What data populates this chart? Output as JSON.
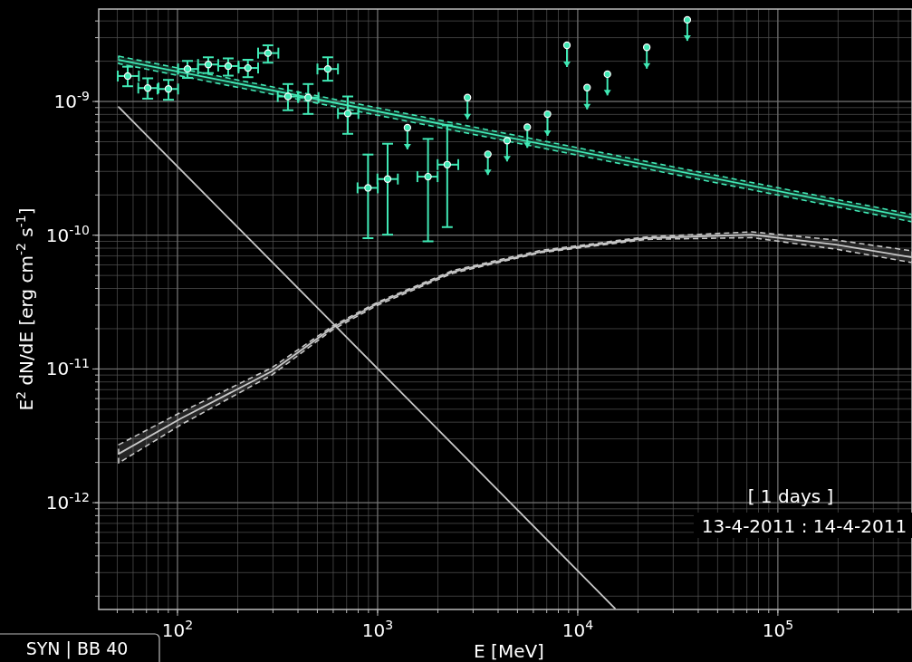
{
  "chart_data": {
    "type": "scatter",
    "xlabel": "E [MeV]",
    "ylabel": "E$^{2}$ dN/dE [erg cm$^{-2}$ s$^{-1}$]",
    "log": "xy",
    "grid": true,
    "xlim": [
      40.4,
      468000
    ],
    "ylim": [
      1.59e-13,
      4.91e-09
    ],
    "xticks": [
      {
        "value": 100,
        "label": "10$^{2}$"
      },
      {
        "value": 1000,
        "label": "10$^{3}$"
      },
      {
        "value": 10000,
        "label": "10$^{4}$"
      },
      {
        "value": 100000,
        "label": "10$^{5}$"
      }
    ],
    "yticks": [
      {
        "value": 1e-12,
        "label": "10$^{-12}$"
      },
      {
        "value": 1e-11,
        "label": "10$^{-11}$"
      },
      {
        "value": 1e-10,
        "label": "10$^{-10}$"
      },
      {
        "value": 1e-09,
        "label": "10$^{-9}$"
      }
    ],
    "annotations": [
      {
        "text": "[ 1 days ]"
      },
      {
        "text": "13-4-2011 : 14-4-2011"
      },
      {
        "text": "SYN | BB 40"
      }
    ],
    "series": [
      {
        "type": "line",
        "color": "#c8c8c8",
        "x": [
          50.8,
          104.2,
          295.8,
          594,
          1000,
          2377,
          6516,
          21830,
          73960,
          195000,
          467700
        ],
        "values": [
          2.32e-12,
          4.27e-12,
          9.6e-12,
          2.03e-11,
          3.09e-11,
          5.33e-11,
          7.52e-11,
          9.5e-11,
          1.01e-10,
          8.51e-11,
          6.84e-11
        ],
        "lower": [
          1.98e-12,
          3.83e-12,
          9e-12,
          1.96e-11,
          3e-11,
          5.2e-11,
          7.4e-11,
          9.3e-11,
          9.6e-11,
          7.87e-11,
          6.24e-11
        ],
        "upper": [
          2.71e-12,
          4.75e-12,
          1.02e-11,
          2.09e-11,
          3.16e-11,
          5.45e-11,
          7.7e-11,
          9.7e-11,
          1.06e-10,
          9.2e-11,
          7.64e-11
        ],
        "line_style": "solid"
      },
      {
        "type": "line",
        "color": "#c8c8c8",
        "x": [
          50.8,
          15350
        ],
        "values": [
          9.1e-10,
          1.62e-13
        ],
        "line_style": "solid"
      },
      {
        "type": "line",
        "color": "#40e8b4",
        "x": [
          50.8,
          468000
        ],
        "values": [
          2.05e-09,
          1.35e-10
        ],
        "lower": [
          1.92e-09,
          1.26e-10
        ],
        "upper": [
          2.18e-09,
          1.43e-10
        ],
        "line_style": "solid"
      },
      {
        "color": "#40e8b4",
        "marker": "circle",
        "x": [
          56.4,
          71.0,
          90.1,
          112.2,
          142.5,
          179.2,
          224.8,
          283.1,
          356.4,
          449.8,
          563.6,
          709.3,
          895.4,
          1122,
          1786,
          2228
        ],
        "values": [
          1.55e-09,
          1.26e-09,
          1.24e-09,
          1.75e-09,
          1.89e-09,
          1.84e-09,
          1.78e-09,
          2.3e-09,
          1.09e-09,
          1.07e-09,
          1.75e-09,
          8.13e-10,
          2.26e-10,
          2.63e-10,
          2.74e-10,
          3.37e-10
        ],
        "errors": [
          [
            1.3e-09,
            1.82e-09
          ],
          [
            1.05e-09,
            1.49e-09
          ],
          [
            1.03e-09,
            1.45e-09
          ],
          [
            1.5e-09,
            2.01e-09
          ],
          [
            1.63e-09,
            2.14e-09
          ],
          [
            1.56e-09,
            2.1e-09
          ],
          [
            1.52e-09,
            2.05e-09
          ],
          [
            1.95e-09,
            2.63e-09
          ],
          [
            8.6e-10,
            1.35e-09
          ],
          [
            8.07e-10,
            1.35e-09
          ],
          [
            1.43e-09,
            2.14e-09
          ],
          [
            5.73e-10,
            1.09e-09
          ],
          [
            9.5e-11,
            4.01e-10
          ],
          [
            1.01e-10,
            4.83e-10
          ],
          [
            9e-11,
            5.25e-10
          ],
          [
            1.15e-10,
            6.64e-10
          ]
        ],
        "xerrors": [
          [
            50.3,
            64.1
          ],
          [
            63.7,
            80.4
          ],
          [
            79.5,
            100.7
          ],
          [
            100.7,
            126.7
          ],
          [
            126.7,
            159.8
          ],
          [
            159.8,
            201.8
          ],
          [
            201.8,
            252.9
          ],
          [
            252.9,
            319.2
          ],
          [
            317,
            400.8
          ],
          [
            400.8,
            506.6
          ],
          [
            500.5,
            633.6
          ],
          [
            633.6,
            801.7
          ],
          [
            794,
            1002
          ],
          [
            998,
            1262
          ],
          [
            1581,
            1995
          ],
          [
            1995,
            2529
          ]
        ]
      },
      {
        "color": "#40e8b4",
        "marker": "circle",
        "x": [
          1409,
          2812,
          3556,
          4436,
          5598,
          7063,
          8831,
          11140,
          14070,
          22130,
          35280
        ],
        "values": [
          6.37e-10,
          1.07e-09,
          4.03e-10,
          5.09e-10,
          6.43e-10,
          8.04e-10,
          2.63e-09,
          1.27e-09,
          1.6e-09,
          2.54e-09,
          4.08e-09
        ],
        "errors": [
          [
            4.38e-10,
            6.37e-10
          ],
          [
            7.36e-10,
            1.07e-09
          ],
          [
            2.82e-10,
            4.03e-10
          ],
          [
            3.56e-10,
            5.09e-10
          ],
          [
            4.5e-10,
            6.43e-10
          ],
          [
            5.53e-10,
            8.04e-10
          ],
          [
            1.81e-09,
            2.63e-09
          ],
          [
            8.73e-10,
            1.27e-09
          ],
          [
            1.11e-09,
            1.6e-09
          ],
          [
            1.76e-09,
            2.54e-09
          ],
          [
            2.84e-09,
            4.08e-09
          ]
        ]
      }
    ]
  }
}
